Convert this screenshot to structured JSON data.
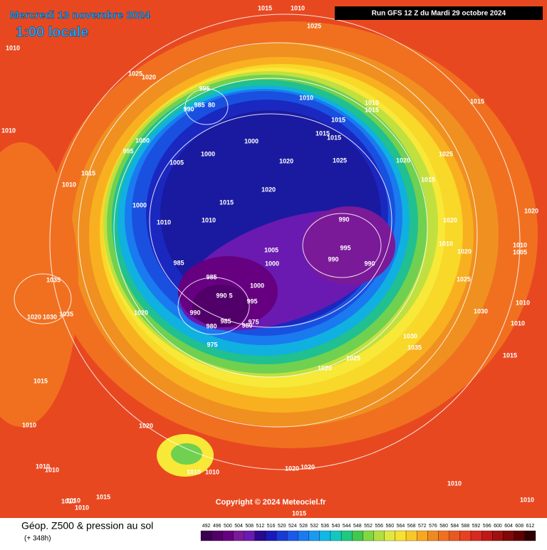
{
  "header": {
    "title": "Mercredi 13 novembre 2024",
    "time": "1:00 locale",
    "run": "Run GFS 12 Z du Mardi 29 octobre 2024"
  },
  "map": {
    "isobar_labels": [
      1015,
      1010,
      1025,
      1010,
      1025,
      1020,
      995,
      1010,
      990,
      985,
      80,
      1010,
      1015,
      1015,
      1010,
      1015,
      1015,
      1015,
      1000,
      995,
      1000,
      1000,
      1005,
      1020,
      1025,
      1020,
      1025,
      1015,
      1010,
      1015,
      1020,
      1015,
      1000,
      1010,
      1010,
      990,
      1020,
      1020,
      1010,
      995,
      1005,
      1020,
      1010,
      1005,
      985,
      990,
      990,
      1000,
      985,
      1025,
      1035,
      1000,
      990,
      5,
      995,
      1010,
      1020,
      990,
      1030,
      1020,
      1030,
      1035,
      985,
      980,
      975,
      980,
      1010,
      975,
      1030,
      1035,
      1015,
      1025,
      1020,
      1015,
      1010,
      1020,
      1010,
      1010,
      1010,
      1010,
      1020,
      1020,
      1010,
      1015,
      1010,
      1010,
      1010,
      1010,
      1015
    ]
  },
  "footer": {
    "copyright": "Copyright © 2024 Meteociel.fr",
    "caption": "Géop. Z500 & pression au sol",
    "lead": "(+ 348h)"
  },
  "legend": {
    "values": [
      492,
      496,
      500,
      504,
      508,
      512,
      516,
      520,
      524,
      528,
      532,
      536,
      540,
      544,
      548,
      552,
      556,
      560,
      564,
      568,
      572,
      576,
      580,
      584,
      588,
      592,
      596,
      600,
      604,
      608,
      612
    ],
    "colors": [
      "#3a0050",
      "#500068",
      "#660080",
      "#7a1a98",
      "#6a1ab0",
      "#2a0890",
      "#1a1ab8",
      "#1a3ad8",
      "#1a5ae8",
      "#1a7af0",
      "#1a9af0",
      "#10b8e8",
      "#10c8c0",
      "#20c880",
      "#40c850",
      "#80d840",
      "#b0e040",
      "#e0e840",
      "#f8e030",
      "#f8c828",
      "#f8a820",
      "#f08a20",
      "#f07020",
      "#e85820",
      "#e84020",
      "#d82820",
      "#c01818",
      "#a01010",
      "#800808",
      "#600000",
      "#300000"
    ]
  }
}
